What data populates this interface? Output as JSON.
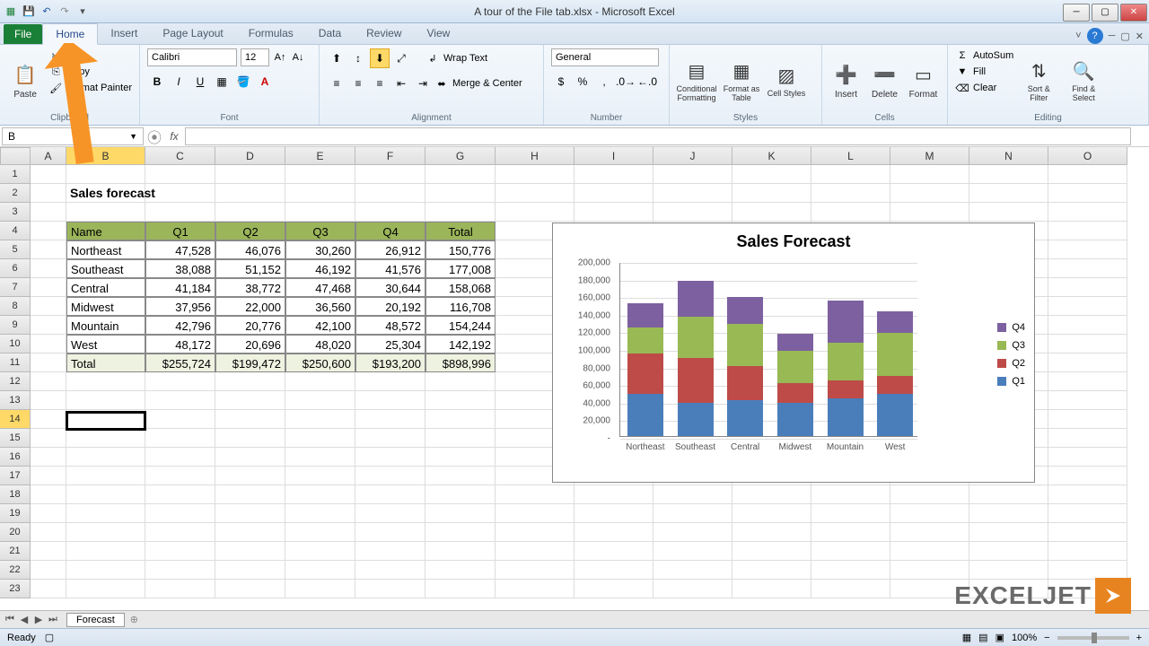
{
  "window": {
    "title": "A tour of the File tab.xlsx - Microsoft Excel"
  },
  "tabs": {
    "file": "File",
    "list": [
      "Home",
      "Insert",
      "Page Layout",
      "Formulas",
      "Data",
      "Review",
      "View"
    ],
    "active": 0
  },
  "ribbon": {
    "clipboard": {
      "paste": "Paste",
      "cut": "Cut",
      "copy": "Copy",
      "painter": "Format Painter",
      "label": "Clipboard"
    },
    "font": {
      "name": "Calibri",
      "size": "12",
      "label": "Font"
    },
    "alignment": {
      "wrap": "Wrap Text",
      "merge": "Merge & Center",
      "label": "Alignment"
    },
    "number": {
      "format": "General",
      "label": "Number"
    },
    "styles": {
      "cond": "Conditional Formatting",
      "table": "Format as Table",
      "cell": "Cell Styles",
      "label": "Styles"
    },
    "cells": {
      "insert": "Insert",
      "delete": "Delete",
      "format": "Format",
      "label": "Cells"
    },
    "editing": {
      "autosum": "AutoSum",
      "fill": "Fill",
      "clear": "Clear",
      "sort": "Sort & Filter",
      "find": "Find & Select",
      "label": "Editing"
    }
  },
  "namebox": "B",
  "columns": {
    "letters": [
      "A",
      "B",
      "C",
      "D",
      "E",
      "F",
      "G",
      "H",
      "I",
      "J",
      "K",
      "L",
      "M",
      "N",
      "O"
    ],
    "widths": [
      40,
      88,
      78,
      78,
      78,
      78,
      78,
      88,
      88,
      88,
      88,
      88,
      88,
      88,
      88
    ],
    "selected": 1
  },
  "rows": {
    "count": 23,
    "selected": 14
  },
  "sheet": {
    "title": "Sales forecast",
    "table": {
      "headers": [
        "Name",
        "Q1",
        "Q2",
        "Q3",
        "Q4",
        "Total"
      ],
      "data": [
        [
          "Northeast",
          "47,528",
          "46,076",
          "30,260",
          "26,912",
          "150,776"
        ],
        [
          "Southeast",
          "38,088",
          "51,152",
          "46,192",
          "41,576",
          "177,008"
        ],
        [
          "Central",
          "41,184",
          "38,772",
          "47,468",
          "30,644",
          "158,068"
        ],
        [
          "Midwest",
          "37,956",
          "22,000",
          "36,560",
          "20,192",
          "116,708"
        ],
        [
          "Mountain",
          "42,796",
          "20,776",
          "42,100",
          "48,572",
          "154,244"
        ],
        [
          "West",
          "48,172",
          "20,696",
          "48,020",
          "25,304",
          "142,192"
        ]
      ],
      "totals": [
        "Total",
        "$255,724",
        "$199,472",
        "$250,600",
        "$193,200",
        "$898,996"
      ],
      "header_bg": "#9bb55a",
      "total_bg": "#eef2e0"
    }
  },
  "chart": {
    "title": "Sales Forecast",
    "categories": [
      "Northeast",
      "Southeast",
      "Central",
      "Midwest",
      "Mountain",
      "West"
    ],
    "series": [
      {
        "name": "Q1",
        "color": "#4a7ebb",
        "values": [
          47528,
          38088,
          41184,
          37956,
          42796,
          48172
        ]
      },
      {
        "name": "Q2",
        "color": "#be4b48",
        "values": [
          46076,
          51152,
          38772,
          22000,
          20776,
          20696
        ]
      },
      {
        "name": "Q3",
        "color": "#98b954",
        "values": [
          30260,
          46192,
          47468,
          36560,
          42100,
          48020
        ]
      },
      {
        "name": "Q4",
        "color": "#7d60a0",
        "values": [
          26912,
          41576,
          30644,
          20192,
          48572,
          25304
        ]
      }
    ],
    "legend_order": [
      "Q4",
      "Q3",
      "Q2",
      "Q1"
    ],
    "ymax": 200000,
    "ystep": 20000
  },
  "sheet_tab": "Forecast",
  "status": {
    "ready": "Ready",
    "zoom": "100%"
  },
  "logo": "EXCELJET",
  "arrow_color": "#f79428"
}
